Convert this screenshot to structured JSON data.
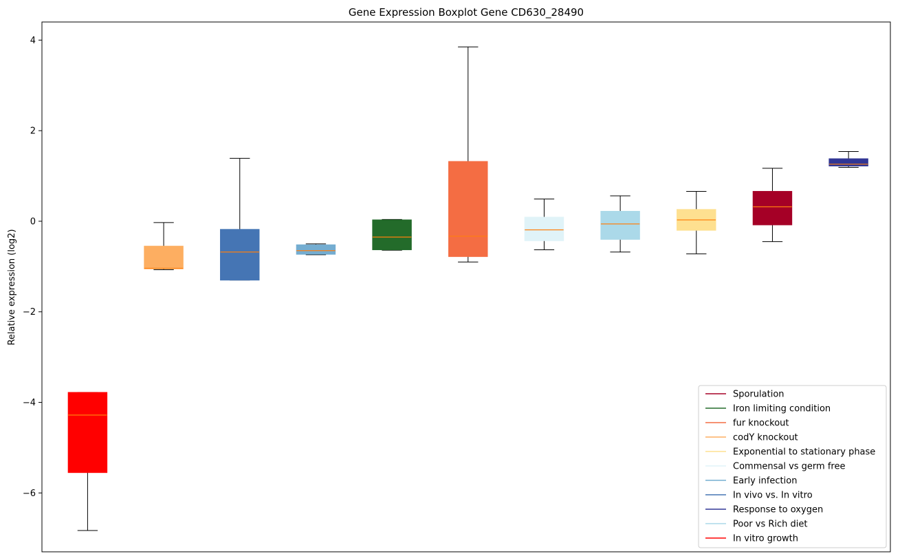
{
  "chart_data": {
    "type": "boxplot",
    "title": "Gene Expression Boxplot Gene CD630_28490",
    "xlabel": "",
    "ylabel": "Relative expression (log2)",
    "ylim": [
      -7.3,
      4.4
    ],
    "yticks": [
      4,
      2,
      0,
      -2,
      -4,
      -6
    ],
    "ytick_labels": [
      "4",
      "2",
      "0",
      "−2",
      "−4",
      "−6"
    ],
    "grid": false,
    "legend_position": "bottom-right",
    "median_color": "#ff7f0e",
    "boxes": [
      {
        "group": "In vitro growth",
        "color": "#ff0000",
        "whisker_low": -6.83,
        "q1": -5.55,
        "median": -4.28,
        "q3": -3.78,
        "whisker_high": -3.78
      },
      {
        "group": "codY knockout",
        "color": "#fdae61",
        "whisker_low": -1.07,
        "q1": -1.05,
        "median": -1.04,
        "q3": -0.55,
        "whisker_high": -0.03
      },
      {
        "group": "In vivo vs. In vitro",
        "color": "#4575b4",
        "whisker_low": -1.3,
        "q1": -1.3,
        "median": -0.68,
        "q3": -0.18,
        "whisker_high": 1.39
      },
      {
        "group": "Early infection",
        "color": "#74add1",
        "whisker_low": -0.74,
        "q1": -0.73,
        "median": -0.65,
        "q3": -0.52,
        "whisker_high": -0.5
      },
      {
        "group": "Iron limiting condition",
        "color": "#236b2a",
        "whisker_low": -0.64,
        "q1": -0.63,
        "median": -0.35,
        "q3": 0.03,
        "whisker_high": 0.04
      },
      {
        "group": "fur knockout",
        "color": "#f46d43",
        "whisker_low": -0.9,
        "q1": -0.78,
        "median": -0.33,
        "q3": 1.32,
        "whisker_high": 3.85
      },
      {
        "group": "Commensal vs germ free",
        "color": "#e0f3f8",
        "whisker_low": -0.63,
        "q1": -0.43,
        "median": -0.19,
        "q3": 0.09,
        "whisker_high": 0.49
      },
      {
        "group": "Poor vs Rich diet",
        "color": "#abd9e9",
        "whisker_low": -0.68,
        "q1": -0.4,
        "median": -0.06,
        "q3": 0.22,
        "whisker_high": 0.56
      },
      {
        "group": "Exponential to stationary phase",
        "color": "#fee090",
        "whisker_low": -0.72,
        "q1": -0.2,
        "median": 0.03,
        "q3": 0.26,
        "whisker_high": 0.66
      },
      {
        "group": "Sporulation",
        "color": "#a50026",
        "whisker_low": -0.45,
        "q1": -0.08,
        "median": 0.32,
        "q3": 0.66,
        "whisker_high": 1.17
      },
      {
        "group": "Response to oxygen",
        "color": "#313695",
        "whisker_low": 1.19,
        "q1": 1.22,
        "median": 1.26,
        "q3": 1.38,
        "whisker_high": 1.54
      }
    ],
    "legend": [
      {
        "label": "Sporulation",
        "color": "#a50026"
      },
      {
        "label": "Iron limiting condition",
        "color": "#236b2a"
      },
      {
        "label": "fur knockout",
        "color": "#f46d43"
      },
      {
        "label": "codY knockout",
        "color": "#fdae61"
      },
      {
        "label": "Exponential to stationary phase",
        "color": "#fee090"
      },
      {
        "label": "Commensal vs germ free",
        "color": "#e0f3f8"
      },
      {
        "label": "Early infection",
        "color": "#74add1"
      },
      {
        "label": "In vivo vs. In vitro",
        "color": "#4575b4"
      },
      {
        "label": "Response to oxygen",
        "color": "#313695"
      },
      {
        "label": "Poor vs Rich diet",
        "color": "#abd9e9"
      },
      {
        "label": "In vitro growth",
        "color": "#ff0000"
      }
    ]
  }
}
